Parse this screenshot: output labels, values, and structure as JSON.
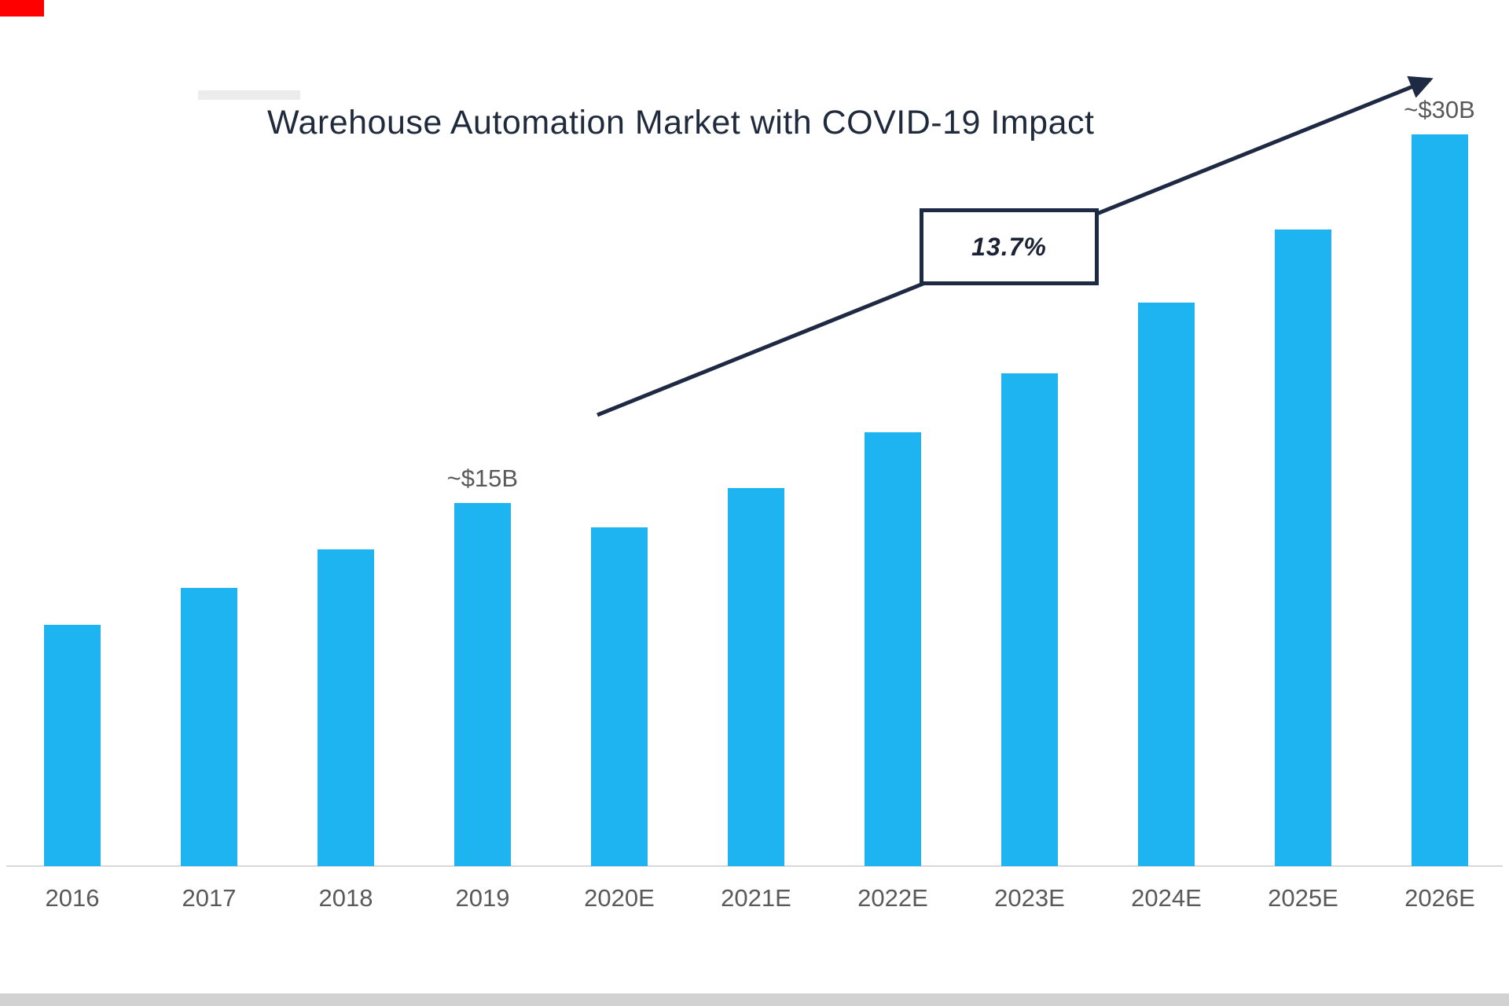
{
  "chart_data": {
    "type": "bar",
    "title": "Warehouse Automation Market with COVID-19 Impact",
    "categories": [
      "2016",
      "2017",
      "2018",
      "2019",
      "2020E",
      "2021E",
      "2022E",
      "2023E",
      "2024E",
      "2025E",
      "2026E"
    ],
    "values": [
      9.9,
      11.4,
      13.0,
      14.9,
      13.9,
      15.5,
      17.8,
      20.2,
      23.1,
      26.1,
      30.0
    ],
    "unit": "$B",
    "ylim": [
      0,
      32
    ],
    "grid": false,
    "y_axis_visible": false,
    "legend": null,
    "annotations": [
      {
        "category": "2019",
        "label": "~$15B"
      },
      {
        "category": "2026E",
        "label": "~$30B"
      }
    ],
    "growth_label": "13.7%",
    "colors": {
      "bar": "#1db4f1",
      "arrow": "#1e2a44",
      "axis": "#d9d9d9",
      "tick_label": "#595959",
      "value_label": "#595959",
      "title": "#1f2a3d",
      "growth_text": "#1a2233",
      "corner_artifact": "#fe0000",
      "smudge_artifact": "#ececec",
      "bottom_strip": "#d2d2d2"
    }
  }
}
